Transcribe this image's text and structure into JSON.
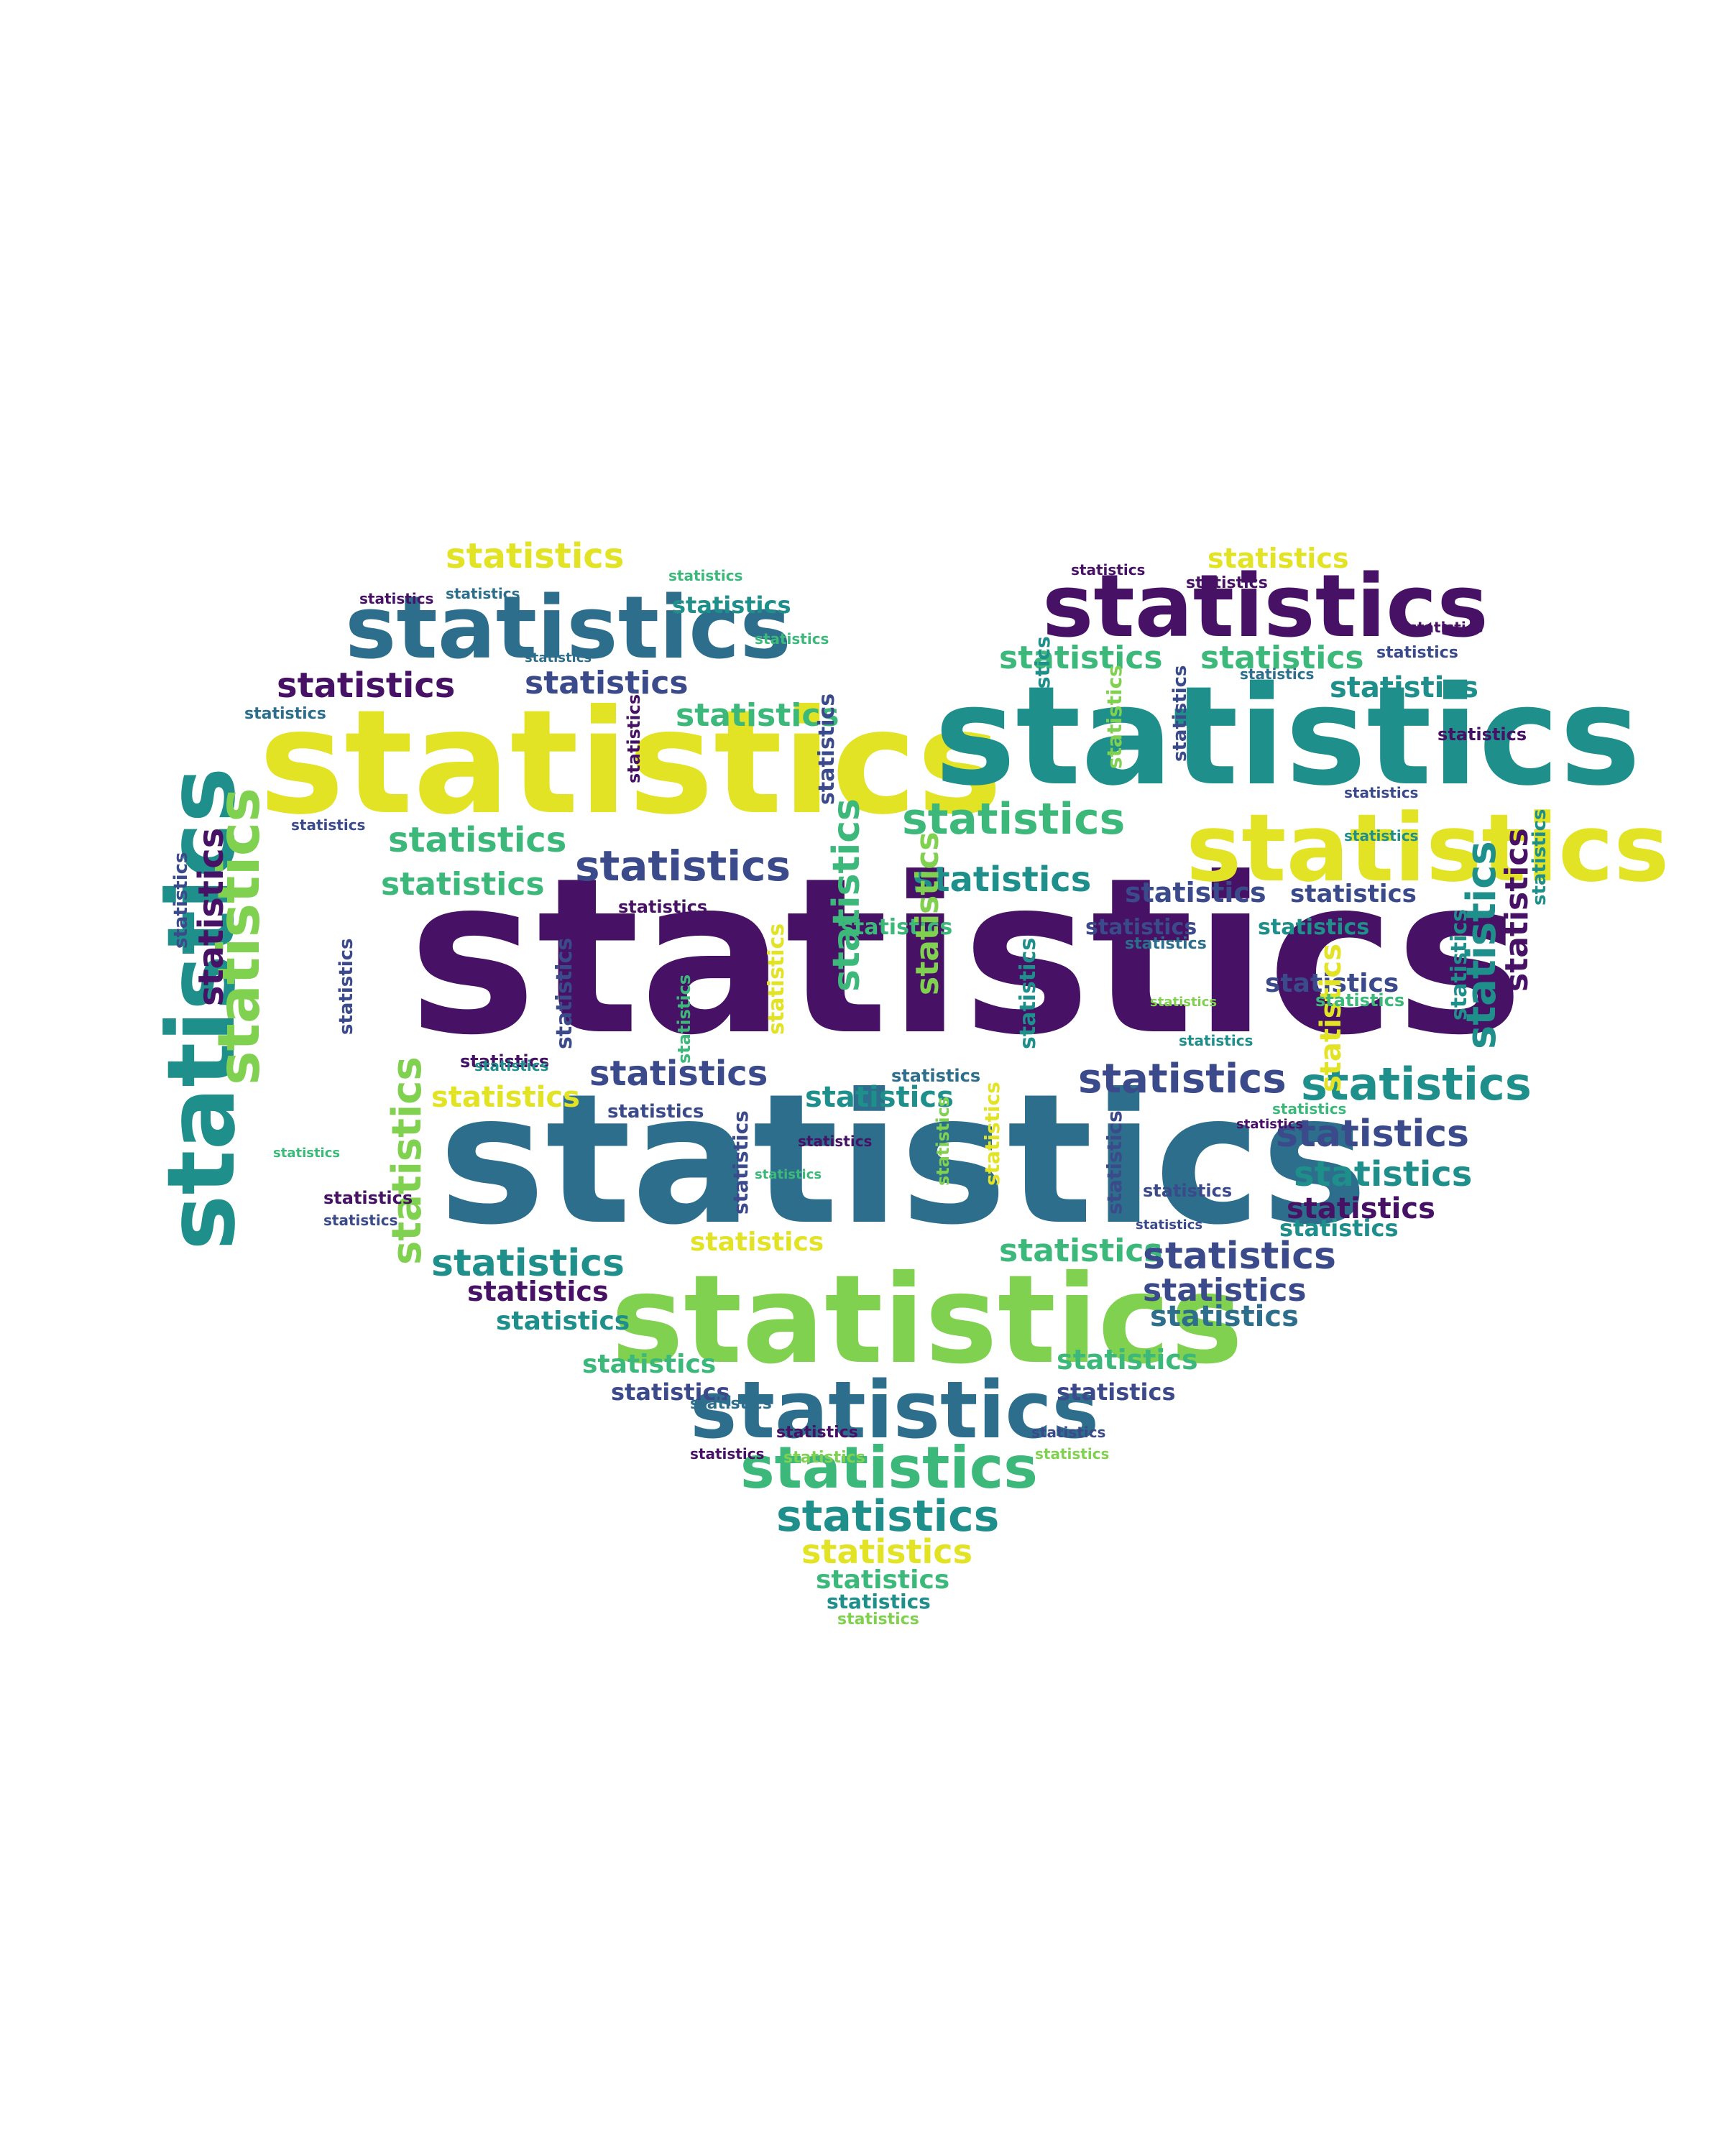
{
  "word": "statistics",
  "palette": {
    "purple": "#471165",
    "indigo": "#3b4a8a",
    "blue": "#2c6e8c",
    "teal": "#1e8f8a",
    "green": "#3cb97a",
    "lime": "#7fd14f",
    "yellow": "#e2e325"
  }
}
